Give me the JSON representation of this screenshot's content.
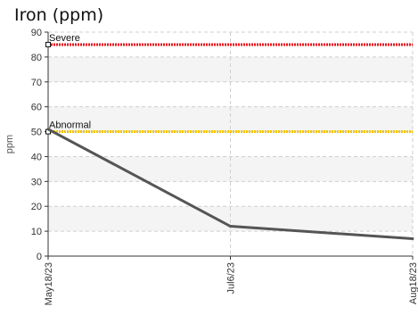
{
  "chart_data": {
    "type": "line",
    "title": "Iron (ppm)",
    "ylabel": "ppm",
    "xlabel": "",
    "ylim": [
      0,
      90
    ],
    "y_ticks": [
      0,
      10,
      20,
      30,
      40,
      50,
      60,
      70,
      80,
      90
    ],
    "categories": [
      "May18/23",
      "Jul6/23",
      "Aug18/23"
    ],
    "series": [
      {
        "values": [
          51,
          12,
          7
        ],
        "color": "#555555"
      }
    ],
    "thresholds": [
      {
        "label": "Severe",
        "value": 85,
        "color": "#e8101a"
      },
      {
        "label": "Abnormal",
        "value": 50,
        "color": "#f5c400"
      }
    ],
    "grid": true,
    "legend": "none"
  }
}
